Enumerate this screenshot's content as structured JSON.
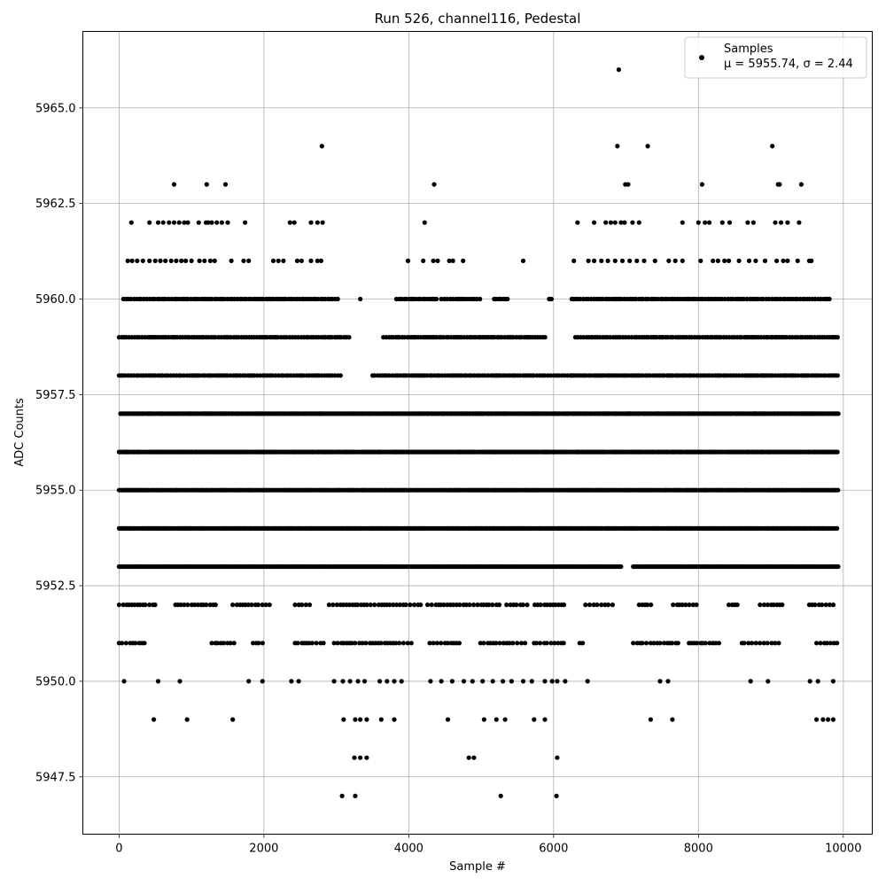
{
  "chart_data": {
    "type": "scatter",
    "title": "Run 526, channel116, Pedestal",
    "xlabel": "Sample #",
    "ylabel": "ADC Counts",
    "xlim": [
      -500,
      10400
    ],
    "ylim": [
      5946.0,
      5967.0
    ],
    "xticks": [
      0,
      2000,
      4000,
      6000,
      8000,
      10000
    ],
    "xtick_labels": [
      "0",
      "2000",
      "4000",
      "6000",
      "8000",
      "10000"
    ],
    "yticks": [
      5947.5,
      5950.0,
      5952.5,
      5955.0,
      5957.5,
      5960.0,
      5962.5,
      5965.0
    ],
    "ytick_labels": [
      "5947.5",
      "5950.0",
      "5952.5",
      "5955.0",
      "5957.5",
      "5960.0",
      "5962.5",
      "5965.0"
    ],
    "grid": true,
    "legend": {
      "placement": "top-right",
      "series_name": "Samples",
      "stats_label": "μ = 5955.74, σ = 2.44"
    },
    "marker_color": "#000000",
    "n_samples": 10000,
    "levels": [
      {
        "y": 5966,
        "x": [
          6900
        ]
      },
      {
        "y": 5964,
        "x": [
          2800,
          6880,
          7300,
          9020
        ]
      },
      {
        "y": 5963,
        "x": [
          760,
          1210,
          1470,
          4350,
          6990,
          7030,
          8050,
          9100,
          9120,
          9420
        ]
      },
      {
        "y": 5962,
        "x": [
          170,
          420,
          540,
          610,
          690,
          760,
          830,
          900,
          950,
          1100,
          1200,
          1230,
          1280,
          1350,
          1420,
          1500,
          1740,
          2360,
          2420,
          2650,
          2740,
          2810,
          4220,
          6330,
          6560,
          6720,
          6790,
          6850,
          6930,
          6980,
          7090,
          7180,
          7780,
          8000,
          8090,
          8150,
          8330,
          8430,
          8680,
          8760,
          9060,
          9140,
          9230,
          9390
        ]
      },
      {
        "y": 5961,
        "x": [
          120,
          180,
          250,
          330,
          420,
          500,
          570,
          640,
          720,
          790,
          860,
          920,
          1000,
          1110,
          1180,
          1260,
          1320,
          1550,
          1720,
          1790,
          2130,
          2200,
          2270,
          2460,
          2520,
          2650,
          2740,
          2790,
          3990,
          4200,
          4340,
          4400,
          4560,
          4610,
          4750,
          5580,
          6280,
          6480,
          6560,
          6660,
          6750,
          6850,
          6950,
          7050,
          7150,
          7250,
          7400,
          7590,
          7680,
          7780,
          8030,
          8200,
          8270,
          8360,
          8420,
          8560,
          8700,
          8790,
          8920,
          9080,
          9170,
          9230,
          9370,
          9530,
          9560
        ]
      },
      {
        "y": 5950,
        "x": [
          70,
          540,
          840,
          1790,
          1980,
          2380,
          2480,
          2970,
          3090,
          3190,
          3300,
          3390,
          3600,
          3700,
          3800,
          3900,
          4300,
          4450,
          4600,
          4760,
          4880,
          5020,
          5160,
          5300,
          5420,
          5580,
          5700,
          5880,
          5980,
          6050,
          6160,
          6470,
          7470,
          7580,
          8720,
          8960,
          9540,
          9650,
          9860
        ]
      },
      {
        "y": 5949,
        "x": [
          480,
          940,
          1570,
          3100,
          3260,
          3330,
          3420,
          3620,
          3800,
          4540,
          5040,
          5210,
          5330,
          5730,
          5880,
          7340,
          7640,
          9630,
          9720,
          9790,
          9860
        ]
      },
      {
        "y": 5948,
        "x": [
          3250,
          3330,
          3420,
          4830,
          4900,
          6050
        ]
      },
      {
        "y": 5947,
        "x": [
          3080,
          3260,
          5270,
          6040
        ]
      }
    ],
    "dense_levels": [
      {
        "y": 5960,
        "x_range": [
          60,
          3350
        ],
        "gaps": [
          [
            3050,
            3300
          ]
        ],
        "extra": [
          [
            3830,
            4400
          ],
          [
            4450,
            5000
          ],
          [
            5180,
            5400
          ],
          [
            5940,
            6000
          ],
          [
            6250,
            9820
          ]
        ]
      },
      {
        "y": 5959,
        "x_range": [
          0,
          3200
        ],
        "gaps": [],
        "extra": [
          [
            3650,
            5900
          ],
          [
            6300,
            9930
          ]
        ]
      },
      {
        "y": 5958,
        "x_range": [
          0,
          3080
        ],
        "gaps": [],
        "extra": [
          [
            3500,
            9930
          ]
        ]
      },
      {
        "y": 5957,
        "x_range": [
          20,
          9940
        ],
        "gaps": [],
        "extra": []
      },
      {
        "y": 5956,
        "x_range": [
          0,
          9940
        ],
        "gaps": [],
        "extra": []
      },
      {
        "y": 5955,
        "x_range": [
          0,
          9940
        ],
        "gaps": [],
        "extra": []
      },
      {
        "y": 5954,
        "x_range": [
          0,
          9940
        ],
        "gaps": [],
        "extra": []
      },
      {
        "y": 5953,
        "x_range": [
          0,
          9940
        ],
        "gaps": [
          [
            6950,
            7080
          ]
        ],
        "extra": []
      }
    ],
    "medium_levels": [
      {
        "y": 5952,
        "x_ranges": [
          [
            0,
            520
          ],
          [
            780,
            1360
          ],
          [
            1570,
            2100
          ],
          [
            2430,
            2640
          ],
          [
            2900,
            4180
          ],
          [
            4260,
            4800
          ],
          [
            4840,
            5280
          ],
          [
            5350,
            5680
          ],
          [
            5740,
            6160
          ],
          [
            6440,
            6850
          ],
          [
            7180,
            7380
          ],
          [
            7650,
            8010
          ],
          [
            8420,
            8560
          ],
          [
            8850,
            9200
          ],
          [
            9530,
            9920
          ]
        ]
      },
      {
        "y": 5951,
        "x_ranges": [
          [
            0,
            360
          ],
          [
            1280,
            1600
          ],
          [
            1850,
            2010
          ],
          [
            2430,
            2850
          ],
          [
            2970,
            4050
          ],
          [
            4290,
            4700
          ],
          [
            4990,
            5620
          ],
          [
            5730,
            6170
          ],
          [
            6360,
            6460
          ],
          [
            7100,
            7740
          ],
          [
            7870,
            8300
          ],
          [
            8600,
            9160
          ],
          [
            9630,
            9930
          ]
        ]
      }
    ]
  }
}
